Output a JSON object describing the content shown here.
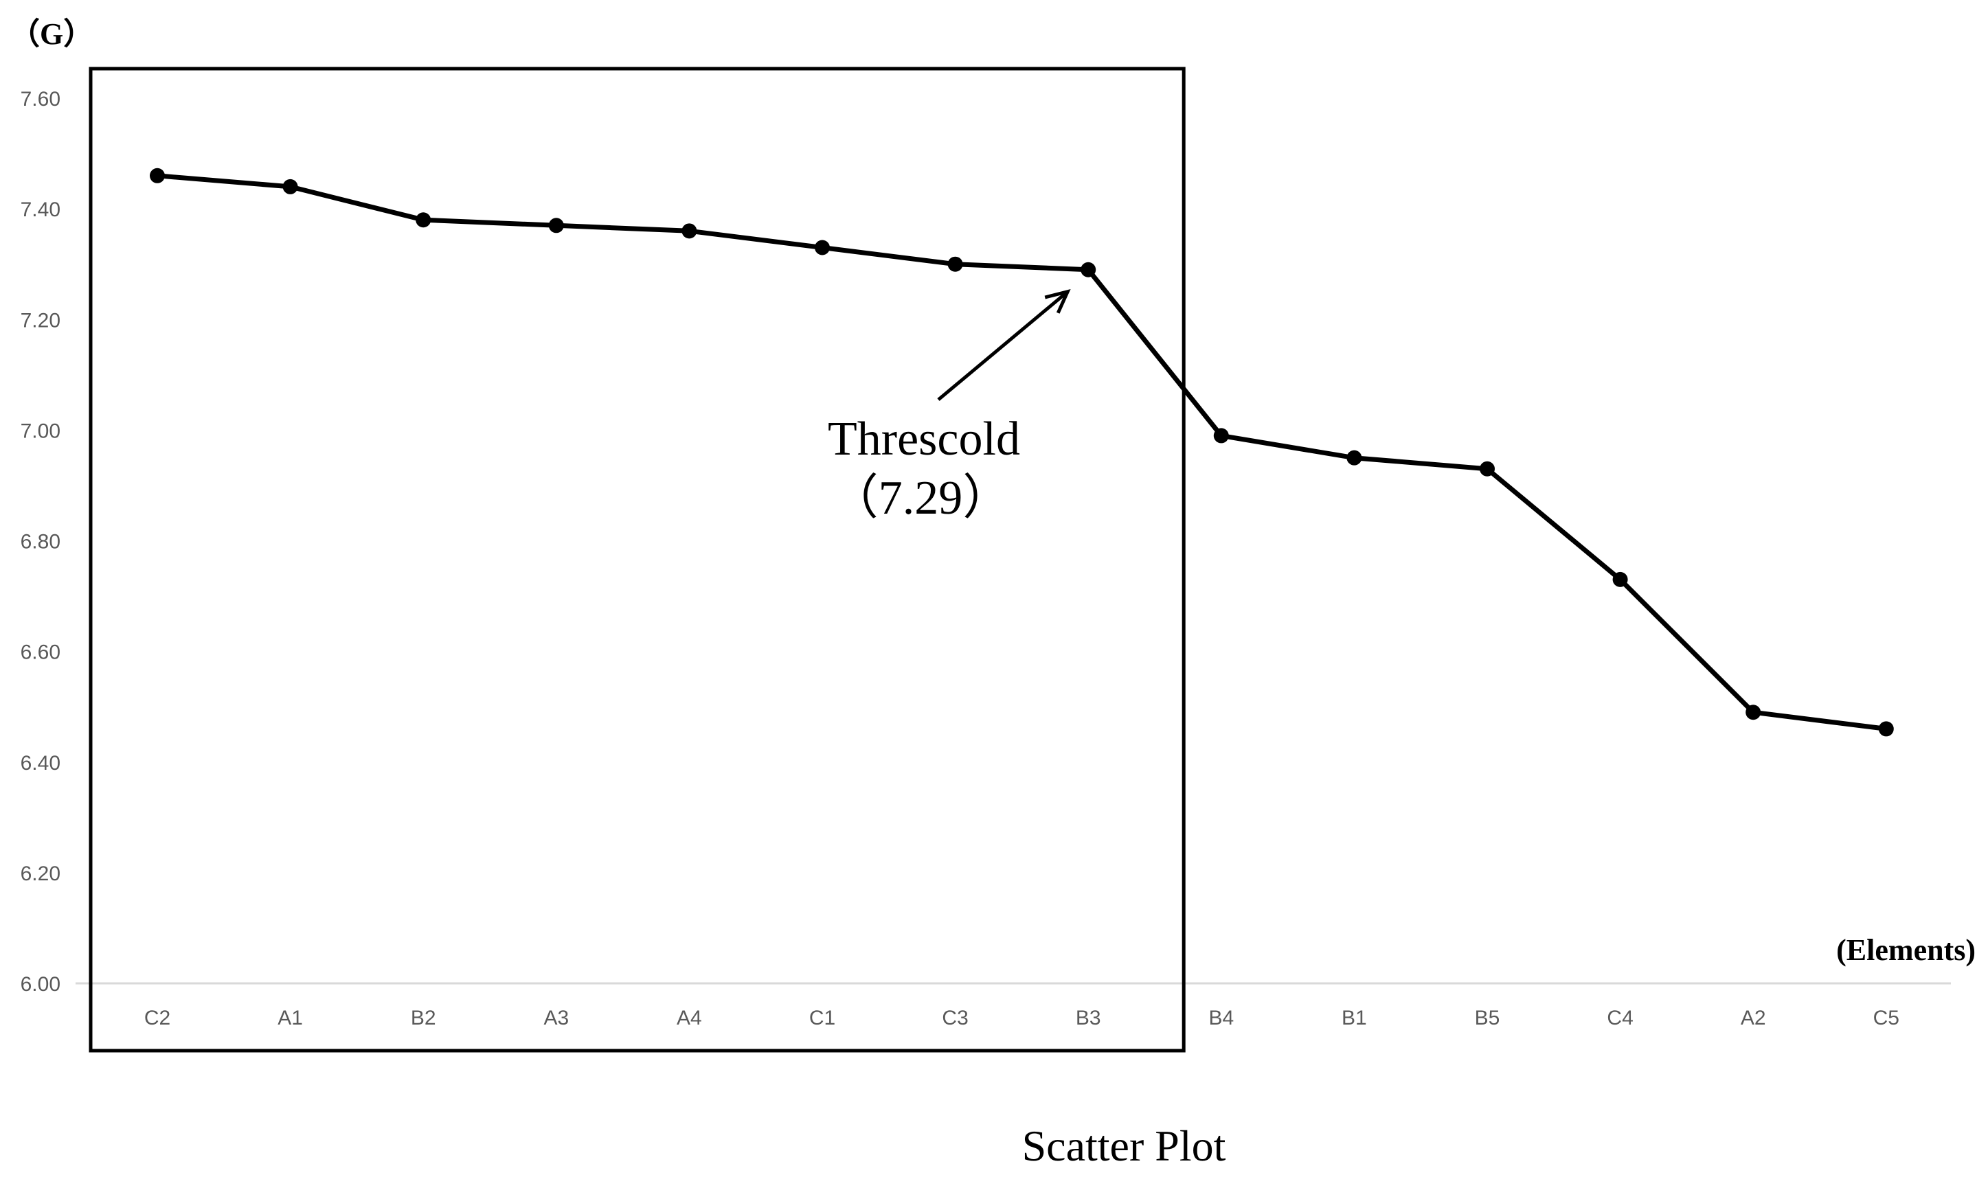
{
  "chart_data": {
    "type": "line",
    "title": "Scatter Plot",
    "ylabel": "（G）",
    "xlabel": "(Elements)",
    "categories": [
      "C2",
      "A1",
      "B2",
      "A3",
      "A4",
      "C1",
      "C3",
      "B3",
      "B4",
      "B1",
      "B5",
      "C4",
      "A2",
      "C5"
    ],
    "series": [
      {
        "name": "G",
        "values": [
          7.46,
          7.44,
          7.38,
          7.37,
          7.36,
          7.33,
          7.3,
          7.29,
          6.99,
          6.95,
          6.93,
          6.73,
          6.49,
          6.46
        ]
      }
    ],
    "ylim": [
      6.0,
      7.6
    ],
    "yticks": [
      "6.00",
      "6.20",
      "6.40",
      "6.60",
      "6.80",
      "7.00",
      "7.20",
      "7.40",
      "7.60"
    ],
    "grid": false,
    "annotation": {
      "label": "Threscold",
      "value_label": "（7.29）",
      "target_category": "B3",
      "target_value": 7.29
    },
    "highlight_box": {
      "from_category": "C2",
      "to_category": "B3"
    },
    "colors": {
      "line": "#000000",
      "axis": "#d9d9d9",
      "tick_text": "#595959",
      "box": "#000000"
    }
  }
}
